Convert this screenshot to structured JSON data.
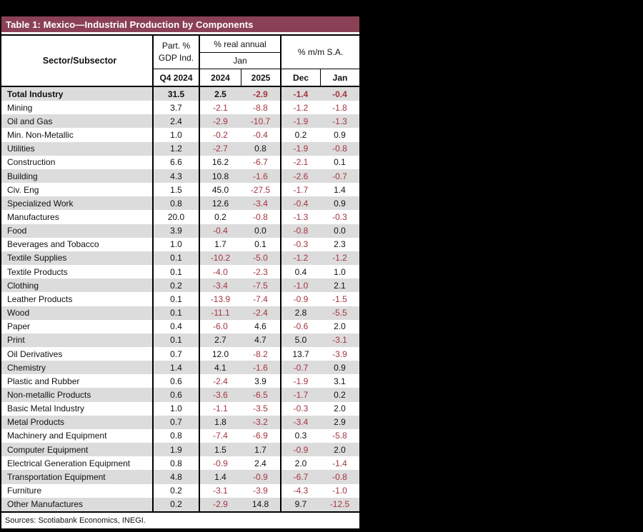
{
  "title": "Table 1: Mexico—Industrial Production by Components",
  "header": {
    "sector_label": "Sector/Subsector",
    "part_pct_line1": "Part. %",
    "part_pct_line2": "GDP Ind.",
    "part_pct_period": "Q4 2024",
    "real_annual_label": "% real annual",
    "real_annual_month": "Jan",
    "real_annual_years": [
      "2024",
      "2025"
    ],
    "mm_sa_label": "% m/m S.A.",
    "mm_sa_months": [
      "Dec",
      "Jan"
    ]
  },
  "footer": {
    "sources": "Sources: Scotiabank Economics, INEGI."
  },
  "colors": {
    "page_bg": "#000000",
    "title_bar_bg": "#8B4155",
    "title_text": "#FFFFFF",
    "negative_value": "#A33540",
    "alt_row_bg": "#DCDCDC",
    "border": "#000000"
  },
  "chart_data": {
    "type": "table",
    "title": "Table 1: Mexico—Industrial Production by Components",
    "columns": [
      "Sector/Subsector",
      "Part. % GDP Ind. — Q4 2024",
      "% real annual — Jan 2024",
      "% real annual — Jan 2025",
      "% m/m S.A. — Dec",
      "% m/m S.A. — Jan"
    ],
    "emphasized_row": "Total Industry",
    "value_format": "one_decimal",
    "negative_values_color": "#A33540",
    "rows": [
      [
        "Total Industry",
        31.5,
        2.5,
        -2.9,
        -1.4,
        -0.4
      ],
      [
        "Mining",
        3.7,
        -2.1,
        -8.8,
        -1.2,
        -1.8
      ],
      [
        "Oil and Gas",
        2.4,
        -2.9,
        -10.7,
        -1.9,
        -1.3
      ],
      [
        "Min. Non-Metallic",
        1.0,
        -0.2,
        -0.4,
        0.2,
        0.9
      ],
      [
        "Utilities",
        1.2,
        -2.7,
        0.8,
        -1.9,
        -0.8
      ],
      [
        "Construction",
        6.6,
        16.2,
        -6.7,
        -2.1,
        0.1
      ],
      [
        "Building",
        4.3,
        10.8,
        -1.6,
        -2.6,
        -0.7
      ],
      [
        "Civ. Eng",
        1.5,
        45.0,
        -27.5,
        -1.7,
        1.4
      ],
      [
        "Specialized Work",
        0.8,
        12.6,
        -3.4,
        -0.4,
        0.9
      ],
      [
        "Manufactures",
        20.0,
        0.2,
        -0.8,
        -1.3,
        -0.3
      ],
      [
        "Food",
        3.9,
        -0.4,
        0.0,
        -0.8,
        0.0
      ],
      [
        "Beverages and Tobacco",
        1.0,
        1.7,
        0.1,
        -0.3,
        2.3
      ],
      [
        "Textile Supplies",
        0.1,
        -10.2,
        -5.0,
        -1.2,
        -1.2
      ],
      [
        "Textile Products",
        0.1,
        -4.0,
        -2.3,
        0.4,
        1.0
      ],
      [
        "Clothing",
        0.2,
        -3.4,
        -7.5,
        -1.0,
        2.1
      ],
      [
        "Leather Products",
        0.1,
        -13.9,
        -7.4,
        -0.9,
        -1.5
      ],
      [
        "Wood",
        0.1,
        -11.1,
        -2.4,
        2.8,
        -5.5
      ],
      [
        "Paper",
        0.4,
        -6.0,
        4.6,
        -0.6,
        2.0
      ],
      [
        "Print",
        0.1,
        2.7,
        4.7,
        5.0,
        -3.1
      ],
      [
        "Oil Derivatives",
        0.7,
        12.0,
        -8.2,
        13.7,
        -3.9
      ],
      [
        "Chemistry",
        1.4,
        4.1,
        -1.6,
        -0.7,
        0.9
      ],
      [
        "Plastic and Rubber",
        0.6,
        -2.4,
        3.9,
        -1.9,
        3.1
      ],
      [
        "Non-metallic Products",
        0.6,
        -3.6,
        -6.5,
        -1.7,
        0.2
      ],
      [
        "Basic Metal Industry",
        1.0,
        -1.1,
        -3.5,
        -0.3,
        2.0
      ],
      [
        "Metal Products",
        0.7,
        1.8,
        -3.2,
        -3.4,
        2.9
      ],
      [
        "Machinery and Equipment",
        0.8,
        -7.4,
        -6.9,
        0.3,
        -5.8
      ],
      [
        "Computer Equipment",
        1.9,
        1.5,
        1.7,
        -0.9,
        2.0
      ],
      [
        "Electrical Generation Equipment",
        0.8,
        -0.9,
        2.4,
        2.0,
        -1.4
      ],
      [
        "Transportation Equipment",
        4.8,
        1.4,
        -0.9,
        -6.7,
        -0.8
      ],
      [
        "Furniture",
        0.2,
        -3.1,
        -3.9,
        -4.3,
        -1.0
      ],
      [
        "Other Manufactures",
        0.2,
        -2.9,
        14.8,
        9.7,
        -12.5
      ]
    ]
  }
}
